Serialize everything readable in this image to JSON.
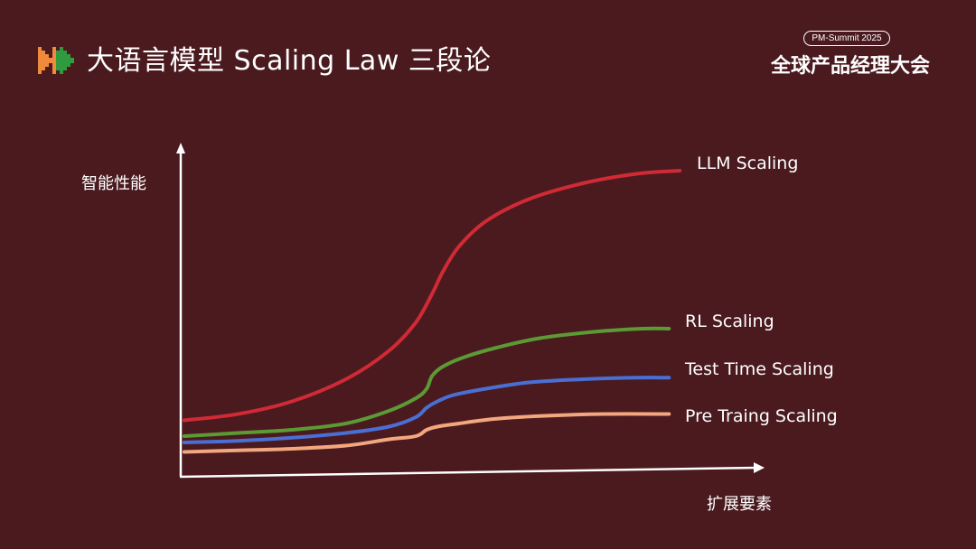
{
  "header": {
    "title": "大语言模型 Scaling Law 三段论",
    "badge": "PM-Summit 2025",
    "event": "全球产品经理大会"
  },
  "colors": {
    "background": "#4a1a1f",
    "logo_orange": "#f08a3c",
    "logo_green": "#2f9a3e"
  },
  "chart_data": {
    "type": "line",
    "ylabel": "智能性能",
    "xlabel": "扩展要素",
    "xlim": [
      0,
      1
    ],
    "ylim": [
      0,
      1
    ],
    "grid": false,
    "legend": "inline labels at curve ends (right)",
    "series": [
      {
        "name": "LLM Scaling",
        "color": "#d02a35",
        "x": [
          0.02,
          0.12,
          0.22,
          0.32,
          0.4,
          0.45,
          0.48,
          0.5,
          0.53,
          0.58,
          0.66,
          0.76,
          0.86,
          0.94
        ],
        "values": [
          0.15,
          0.17,
          0.21,
          0.28,
          0.37,
          0.46,
          0.55,
          0.62,
          0.7,
          0.78,
          0.85,
          0.9,
          0.93,
          0.94
        ]
      },
      {
        "name": "RL Scaling",
        "color": "#5c9a35",
        "x": [
          0.02,
          0.12,
          0.22,
          0.32,
          0.4,
          0.45,
          0.47,
          0.48,
          0.5,
          0.54,
          0.6,
          0.68,
          0.78,
          0.87,
          0.92
        ],
        "values": [
          0.1,
          0.11,
          0.12,
          0.14,
          0.18,
          0.22,
          0.25,
          0.29,
          0.32,
          0.35,
          0.38,
          0.41,
          0.43,
          0.44,
          0.44
        ]
      },
      {
        "name": "Test Time Scaling",
        "color": "#4a6fd4",
        "x": [
          0.02,
          0.12,
          0.22,
          0.32,
          0.4,
          0.45,
          0.47,
          0.49,
          0.52,
          0.58,
          0.66,
          0.76,
          0.86,
          0.92
        ],
        "values": [
          0.08,
          0.085,
          0.095,
          0.11,
          0.13,
          0.16,
          0.19,
          0.21,
          0.23,
          0.25,
          0.27,
          0.28,
          0.285,
          0.285
        ]
      },
      {
        "name": "Pre Traing Scaling",
        "color": "#f3a77f",
        "x": [
          0.02,
          0.12,
          0.22,
          0.32,
          0.4,
          0.45,
          0.47,
          0.49,
          0.53,
          0.6,
          0.7,
          0.8,
          0.92
        ],
        "values": [
          0.05,
          0.055,
          0.06,
          0.07,
          0.09,
          0.1,
          0.12,
          0.13,
          0.14,
          0.155,
          0.165,
          0.17,
          0.17
        ]
      }
    ]
  }
}
